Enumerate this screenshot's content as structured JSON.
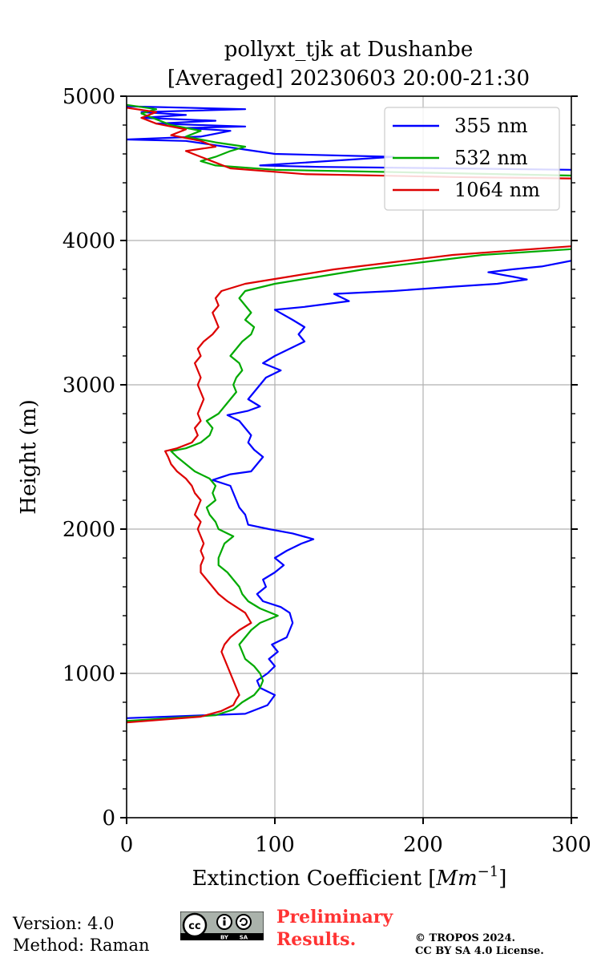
{
  "chart_data": {
    "type": "line",
    "title": "pollyxt_tjk at Dushanbe",
    "subtitle": "[Averaged] 20230603 20:00-21:30",
    "xlabel_text": "Extinction Coefficient [",
    "xlabel_unit_base": "Mm",
    "xlabel_unit_exp": "−1",
    "xlabel_close": "]",
    "ylabel": "Height (m)",
    "xlim": [
      0,
      300
    ],
    "ylim": [
      0,
      5000
    ],
    "xticks": [
      0,
      100,
      200,
      300
    ],
    "xtick_labels": [
      "0",
      "100",
      "200",
      "300"
    ],
    "yticks": [
      0,
      1000,
      2000,
      3000,
      4000,
      5000
    ],
    "ytick_labels": [
      "0",
      "1000",
      "2000",
      "3000",
      "4000",
      "5000"
    ],
    "grid": true,
    "legend_position": "top-right",
    "series": [
      {
        "name": "355 nm",
        "color": "#0000ff",
        "points": [
          [
            0,
            690
          ],
          [
            80,
            720
          ],
          [
            95,
            780
          ],
          [
            100,
            850
          ],
          [
            90,
            900
          ],
          [
            88,
            950
          ],
          [
            95,
            1000
          ],
          [
            100,
            1050
          ],
          [
            96,
            1100
          ],
          [
            102,
            1150
          ],
          [
            98,
            1200
          ],
          [
            108,
            1250
          ],
          [
            110,
            1300
          ],
          [
            112,
            1350
          ],
          [
            110,
            1420
          ],
          [
            104,
            1460
          ],
          [
            92,
            1500
          ],
          [
            88,
            1550
          ],
          [
            94,
            1600
          ],
          [
            92,
            1650
          ],
          [
            100,
            1700
          ],
          [
            106,
            1750
          ],
          [
            100,
            1800
          ],
          [
            108,
            1850
          ],
          [
            118,
            1900
          ],
          [
            126,
            1930
          ],
          [
            112,
            1970
          ],
          [
            96,
            2000
          ],
          [
            82,
            2030
          ],
          [
            80,
            2100
          ],
          [
            76,
            2150
          ],
          [
            74,
            2200
          ],
          [
            72,
            2250
          ],
          [
            70,
            2300
          ],
          [
            58,
            2340
          ],
          [
            70,
            2380
          ],
          [
            84,
            2400
          ],
          [
            88,
            2450
          ],
          [
            92,
            2500
          ],
          [
            86,
            2550
          ],
          [
            82,
            2600
          ],
          [
            84,
            2650
          ],
          [
            80,
            2700
          ],
          [
            76,
            2750
          ],
          [
            68,
            2790
          ],
          [
            82,
            2820
          ],
          [
            90,
            2850
          ],
          [
            82,
            2900
          ],
          [
            86,
            2950
          ],
          [
            90,
            3000
          ],
          [
            94,
            3050
          ],
          [
            104,
            3100
          ],
          [
            92,
            3150
          ],
          [
            100,
            3200
          ],
          [
            110,
            3250
          ],
          [
            120,
            3300
          ],
          [
            116,
            3350
          ],
          [
            120,
            3400
          ],
          [
            112,
            3450
          ],
          [
            100,
            3520
          ],
          [
            120,
            3540
          ],
          [
            150,
            3580
          ],
          [
            140,
            3630
          ],
          [
            180,
            3650
          ],
          [
            220,
            3680
          ],
          [
            250,
            3700
          ],
          [
            270,
            3730
          ],
          [
            260,
            3750
          ],
          [
            244,
            3780
          ],
          [
            260,
            3800
          ],
          [
            280,
            3820
          ],
          [
            300,
            3860
          ]
        ]
      },
      {
        "name": "532 nm",
        "color": "#00aa00",
        "points": [
          [
            0,
            670
          ],
          [
            60,
            710
          ],
          [
            72,
            750
          ],
          [
            78,
            800
          ],
          [
            86,
            850
          ],
          [
            90,
            900
          ],
          [
            92,
            950
          ],
          [
            90,
            1000
          ],
          [
            86,
            1050
          ],
          [
            80,
            1100
          ],
          [
            78,
            1150
          ],
          [
            76,
            1200
          ],
          [
            80,
            1250
          ],
          [
            84,
            1300
          ],
          [
            90,
            1350
          ],
          [
            102,
            1400
          ],
          [
            90,
            1450
          ],
          [
            82,
            1500
          ],
          [
            78,
            1550
          ],
          [
            76,
            1600
          ],
          [
            72,
            1650
          ],
          [
            68,
            1700
          ],
          [
            62,
            1750
          ],
          [
            62,
            1800
          ],
          [
            64,
            1850
          ],
          [
            66,
            1900
          ],
          [
            72,
            1950
          ],
          [
            66,
            1980
          ],
          [
            62,
            2000
          ],
          [
            60,
            2050
          ],
          [
            56,
            2100
          ],
          [
            54,
            2150
          ],
          [
            60,
            2200
          ],
          [
            58,
            2250
          ],
          [
            60,
            2300
          ],
          [
            56,
            2350
          ],
          [
            46,
            2400
          ],
          [
            40,
            2450
          ],
          [
            34,
            2500
          ],
          [
            30,
            2540
          ],
          [
            40,
            2560
          ],
          [
            50,
            2600
          ],
          [
            56,
            2650
          ],
          [
            58,
            2700
          ],
          [
            54,
            2750
          ],
          [
            62,
            2800
          ],
          [
            66,
            2850
          ],
          [
            70,
            2900
          ],
          [
            74,
            2950
          ],
          [
            72,
            3000
          ],
          [
            74,
            3050
          ],
          [
            78,
            3100
          ],
          [
            76,
            3150
          ],
          [
            70,
            3200
          ],
          [
            74,
            3250
          ],
          [
            78,
            3300
          ],
          [
            84,
            3350
          ],
          [
            86,
            3400
          ],
          [
            80,
            3450
          ],
          [
            84,
            3500
          ],
          [
            80,
            3550
          ],
          [
            76,
            3600
          ],
          [
            80,
            3650
          ],
          [
            100,
            3700
          ],
          [
            130,
            3750
          ],
          [
            160,
            3800
          ],
          [
            200,
            3850
          ],
          [
            240,
            3900
          ],
          [
            300,
            3940
          ]
        ]
      },
      {
        "name": "1064 nm",
        "color": "#dd0000",
        "points": [
          [
            0,
            660
          ],
          [
            50,
            700
          ],
          [
            64,
            740
          ],
          [
            72,
            780
          ],
          [
            74,
            820
          ],
          [
            76,
            850
          ],
          [
            74,
            900
          ],
          [
            72,
            950
          ],
          [
            70,
            1000
          ],
          [
            68,
            1050
          ],
          [
            66,
            1100
          ],
          [
            64,
            1150
          ],
          [
            66,
            1200
          ],
          [
            70,
            1250
          ],
          [
            76,
            1300
          ],
          [
            84,
            1350
          ],
          [
            80,
            1420
          ],
          [
            74,
            1460
          ],
          [
            68,
            1500
          ],
          [
            62,
            1550
          ],
          [
            58,
            1600
          ],
          [
            54,
            1650
          ],
          [
            50,
            1700
          ],
          [
            50,
            1750
          ],
          [
            52,
            1800
          ],
          [
            50,
            1850
          ],
          [
            52,
            1900
          ],
          [
            50,
            1950
          ],
          [
            48,
            2000
          ],
          [
            50,
            2050
          ],
          [
            46,
            2100
          ],
          [
            48,
            2150
          ],
          [
            50,
            2200
          ],
          [
            46,
            2250
          ],
          [
            44,
            2300
          ],
          [
            40,
            2350
          ],
          [
            34,
            2400
          ],
          [
            30,
            2450
          ],
          [
            28,
            2500
          ],
          [
            26,
            2540
          ],
          [
            34,
            2560
          ],
          [
            44,
            2600
          ],
          [
            48,
            2650
          ],
          [
            46,
            2700
          ],
          [
            50,
            2750
          ],
          [
            48,
            2800
          ],
          [
            50,
            2850
          ],
          [
            52,
            2900
          ],
          [
            50,
            2950
          ],
          [
            48,
            3000
          ],
          [
            50,
            3050
          ],
          [
            48,
            3100
          ],
          [
            46,
            3150
          ],
          [
            50,
            3200
          ],
          [
            48,
            3250
          ],
          [
            52,
            3300
          ],
          [
            58,
            3350
          ],
          [
            62,
            3400
          ],
          [
            60,
            3450
          ],
          [
            58,
            3500
          ],
          [
            62,
            3550
          ],
          [
            60,
            3600
          ],
          [
            64,
            3650
          ],
          [
            80,
            3700
          ],
          [
            110,
            3750
          ],
          [
            140,
            3800
          ],
          [
            180,
            3850
          ],
          [
            220,
            3900
          ],
          [
            300,
            3960
          ]
        ]
      }
    ],
    "upper_segments": [
      {
        "series": "355 nm",
        "color": "#0000ff",
        "points": [
          [
            300,
            4490
          ],
          [
            220,
            4500
          ],
          [
            130,
            4510
          ],
          [
            90,
            4520
          ],
          [
            120,
            4540
          ],
          [
            180,
            4580
          ],
          [
            100,
            4600
          ],
          [
            80,
            4630
          ],
          [
            60,
            4660
          ],
          [
            40,
            4690
          ],
          [
            0,
            4700
          ],
          [
            50,
            4720
          ],
          [
            60,
            4740
          ],
          [
            70,
            4760
          ],
          [
            40,
            4780
          ],
          [
            80,
            4790
          ],
          [
            20,
            4810
          ],
          [
            60,
            4830
          ],
          [
            10,
            4850
          ],
          [
            40,
            4870
          ],
          [
            10,
            4890
          ],
          [
            80,
            4910
          ],
          [
            0,
            4930
          ]
        ]
      },
      {
        "series": "532 nm",
        "color": "#00aa00",
        "points": [
          [
            300,
            4450
          ],
          [
            200,
            4470
          ],
          [
            100,
            4490
          ],
          [
            60,
            4520
          ],
          [
            50,
            4550
          ],
          [
            60,
            4580
          ],
          [
            70,
            4620
          ],
          [
            80,
            4650
          ],
          [
            60,
            4680
          ],
          [
            40,
            4720
          ],
          [
            50,
            4760
          ],
          [
            30,
            4800
          ],
          [
            20,
            4840
          ],
          [
            10,
            4880
          ],
          [
            20,
            4910
          ],
          [
            0,
            4940
          ]
        ]
      },
      {
        "series": "1064 nm",
        "color": "#dd0000",
        "points": [
          [
            300,
            4430
          ],
          [
            220,
            4440
          ],
          [
            120,
            4460
          ],
          [
            70,
            4500
          ],
          [
            60,
            4540
          ],
          [
            50,
            4580
          ],
          [
            40,
            4620
          ],
          [
            60,
            4650
          ],
          [
            50,
            4690
          ],
          [
            30,
            4730
          ],
          [
            40,
            4770
          ],
          [
            20,
            4810
          ],
          [
            10,
            4850
          ],
          [
            20,
            4890
          ],
          [
            0,
            4920
          ]
        ]
      }
    ]
  },
  "footer": {
    "version": "Version: 4.0",
    "method": "Method: Raman",
    "preliminary_line1": "Preliminary",
    "preliminary_line2": "Results.",
    "copyright_line1": "© TROPOS 2024.",
    "copyright_line2": "CC BY SA 4.0 License.",
    "badge_cc": "cc",
    "badge_by": "BY",
    "badge_sa": "SA"
  }
}
